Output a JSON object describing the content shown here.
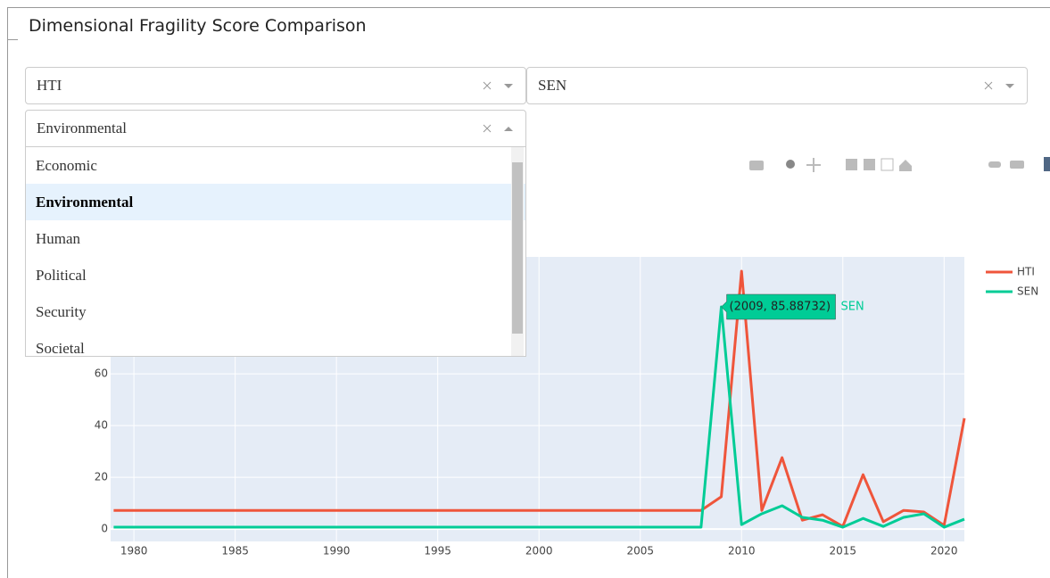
{
  "header": {
    "title": "Dimensional Fragility Score Comparison"
  },
  "country_a": {
    "value": "HTI"
  },
  "country_b": {
    "value": "SEN"
  },
  "dimension": {
    "value": "Environmental",
    "options": [
      "Economic",
      "Environmental",
      "Human",
      "Political",
      "Security",
      "Societal"
    ]
  },
  "chart_data": {
    "type": "line",
    "x": [
      1979,
      1980,
      1981,
      1982,
      1983,
      1984,
      1985,
      1986,
      1987,
      1988,
      1989,
      1990,
      1991,
      1992,
      1993,
      1994,
      1995,
      1996,
      1997,
      1998,
      1999,
      2000,
      2001,
      2002,
      2003,
      2004,
      2005,
      2006,
      2007,
      2008,
      2009,
      2010,
      2011,
      2012,
      2013,
      2014,
      2015,
      2016,
      2017,
      2018,
      2019,
      2020,
      2021
    ],
    "series": [
      {
        "name": "HTI",
        "color": "#ef553b",
        "values": [
          7.2,
          7.2,
          7.2,
          7.2,
          7.2,
          7.2,
          7.2,
          7.2,
          7.2,
          7.2,
          7.2,
          7.2,
          7.2,
          7.2,
          7.2,
          7.2,
          7.2,
          7.2,
          7.2,
          7.2,
          7.2,
          7.2,
          7.2,
          7.2,
          7.2,
          7.2,
          7.2,
          7.2,
          7.2,
          7.2,
          12.5,
          99.7,
          7.2,
          27.6,
          3.4,
          5.5,
          1,
          21,
          2.8,
          7.2,
          6.6,
          1.4,
          42.8
        ]
      },
      {
        "name": "SEN",
        "color": "#00cc96",
        "values": [
          0.7,
          0.7,
          0.7,
          0.7,
          0.7,
          0.7,
          0.7,
          0.7,
          0.7,
          0.7,
          0.7,
          0.7,
          0.7,
          0.7,
          0.7,
          0.7,
          0.7,
          0.7,
          0.7,
          0.7,
          0.7,
          0.7,
          0.7,
          0.7,
          0.7,
          0.7,
          0.7,
          0.7,
          0.7,
          0.7,
          85.88732,
          1.7,
          5.9,
          9,
          4.5,
          3.4,
          0.7,
          4.1,
          1,
          4.5,
          5.9,
          0.7,
          3.8
        ]
      }
    ],
    "xlim": [
      1978.85,
      2021
    ],
    "ylim": [
      -4.8,
      105.2
    ],
    "xticks": [
      1980,
      1985,
      1990,
      1995,
      2000,
      2005,
      2010,
      2015,
      2020
    ],
    "yticks": [
      0,
      20,
      40,
      60
    ],
    "grid": true,
    "hover_label": "(2009, 85.88732)",
    "hover_series": "SEN"
  }
}
